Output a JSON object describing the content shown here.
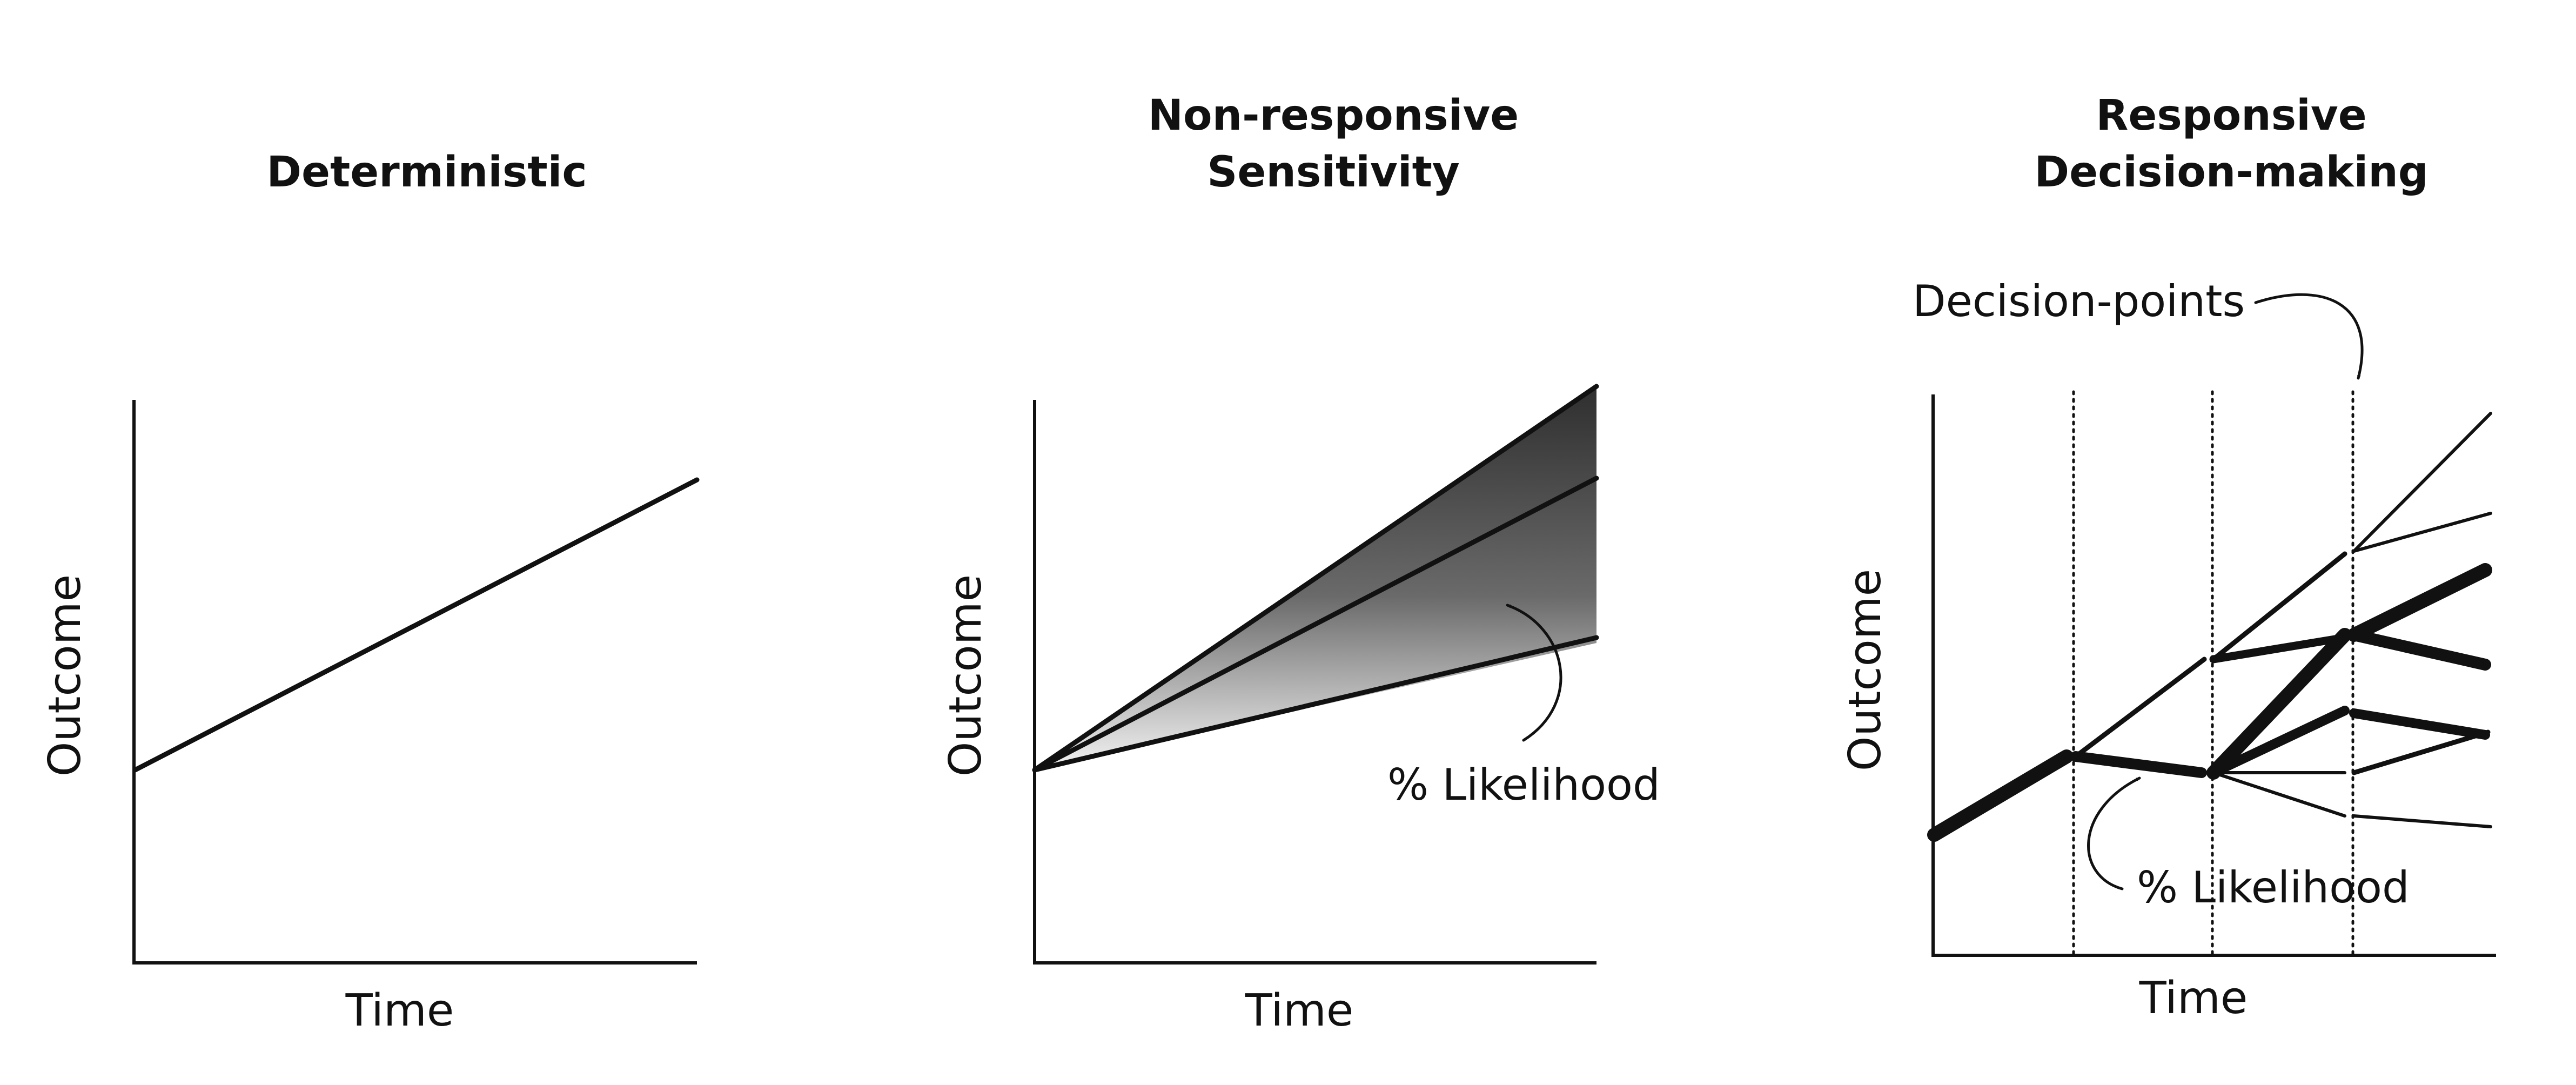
{
  "panels": [
    {
      "title_lines": [
        "Deterministic"
      ],
      "x_axis_label": "Time",
      "y_axis_label": "Outcome"
    },
    {
      "title_lines": [
        "Non-responsive",
        "Sensitivity"
      ],
      "x_axis_label": "Time",
      "y_axis_label": "Outcome",
      "annotation": "% Likelihood"
    },
    {
      "title_lines": [
        "Responsive",
        "Decision-making"
      ],
      "x_axis_label": "Time",
      "y_axis_label": "Outcome",
      "annotation": "% Likelihood",
      "callout": "Decision-points"
    }
  ],
  "colors": {
    "ink": "#111111",
    "fan_dark": "#444444",
    "fan_light": "#f2f2f2",
    "background": "#ffffff"
  }
}
